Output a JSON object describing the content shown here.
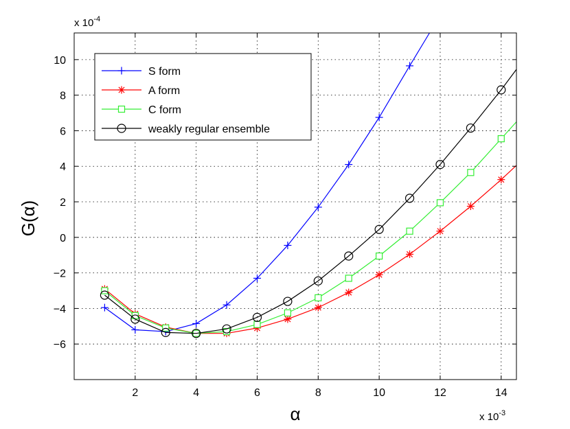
{
  "chart_data": {
    "type": "line",
    "xlabel": "α",
    "ylabel": "G(α)",
    "x_multiplier_label": "x 10",
    "x_multiplier_exp": "-3",
    "y_multiplier_label": "x 10",
    "y_multiplier_exp": "-4",
    "xlim": [
      0,
      14.5
    ],
    "ylim": [
      -8,
      11.5
    ],
    "x_ticks": [
      2,
      4,
      6,
      8,
      10,
      12,
      14
    ],
    "y_ticks": [
      -6,
      -4,
      -2,
      0,
      2,
      4,
      6,
      8,
      10
    ],
    "x_tick_labels": [
      "2",
      "4",
      "6",
      "8",
      "10",
      "12",
      "14"
    ],
    "y_tick_labels": [
      "−6",
      "−4",
      "−2",
      "0",
      "2",
      "4",
      "6",
      "8",
      "10"
    ],
    "grid": true,
    "legend_position": "top-left",
    "series": [
      {
        "name": "S form",
        "color": "#0000ff",
        "marker": "plus",
        "x": [
          1,
          2,
          3,
          4,
          5,
          6,
          7,
          8,
          9,
          10,
          11,
          11.65
        ],
        "y": [
          -3.95,
          -5.2,
          -5.3,
          -4.85,
          -3.8,
          -2.3,
          -0.45,
          1.7,
          4.1,
          6.75,
          9.65,
          11.5
        ],
        "markers_x": [
          1,
          2,
          3,
          4,
          5,
          6,
          7,
          8,
          9,
          10,
          11
        ]
      },
      {
        "name": "A form",
        "color": "#ff0000",
        "marker": "star",
        "x": [
          1,
          2,
          3,
          4,
          5,
          6,
          7,
          8,
          9,
          10,
          11,
          12,
          13,
          14,
          14.5
        ],
        "y": [
          -2.9,
          -4.3,
          -5.05,
          -5.4,
          -5.4,
          -5.1,
          -4.6,
          -3.95,
          -3.1,
          -2.1,
          -0.95,
          0.35,
          1.75,
          3.25,
          4.05
        ],
        "markers_x": [
          1,
          2,
          3,
          4,
          5,
          6,
          7,
          8,
          9,
          10,
          11,
          12,
          13,
          14
        ]
      },
      {
        "name": "C form",
        "color": "#33ee33",
        "marker": "square",
        "x": [
          1,
          2,
          3,
          4,
          5,
          6,
          7,
          8,
          9,
          10,
          11,
          12,
          13,
          14,
          14.5
        ],
        "y": [
          -3.0,
          -4.4,
          -5.1,
          -5.4,
          -5.3,
          -4.9,
          -4.25,
          -3.4,
          -2.3,
          -1.05,
          0.35,
          1.95,
          3.65,
          5.55,
          6.5
        ],
        "markers_x": [
          1,
          2,
          3,
          4,
          5,
          6,
          7,
          8,
          9,
          10,
          11,
          12,
          13,
          14
        ]
      },
      {
        "name": "weakly regular ensemble",
        "color": "#000000",
        "marker": "circle",
        "x": [
          1,
          2,
          3,
          4,
          5,
          6,
          7,
          8,
          9,
          10,
          11,
          12,
          13,
          14,
          14.5
        ],
        "y": [
          -3.25,
          -4.6,
          -5.35,
          -5.4,
          -5.15,
          -4.5,
          -3.6,
          -2.45,
          -1.05,
          0.45,
          2.2,
          4.1,
          6.15,
          8.3,
          9.45
        ],
        "markers_x": [
          1,
          2,
          3,
          4,
          5,
          6,
          7,
          8,
          9,
          10,
          11,
          12,
          13,
          14
        ]
      }
    ]
  }
}
